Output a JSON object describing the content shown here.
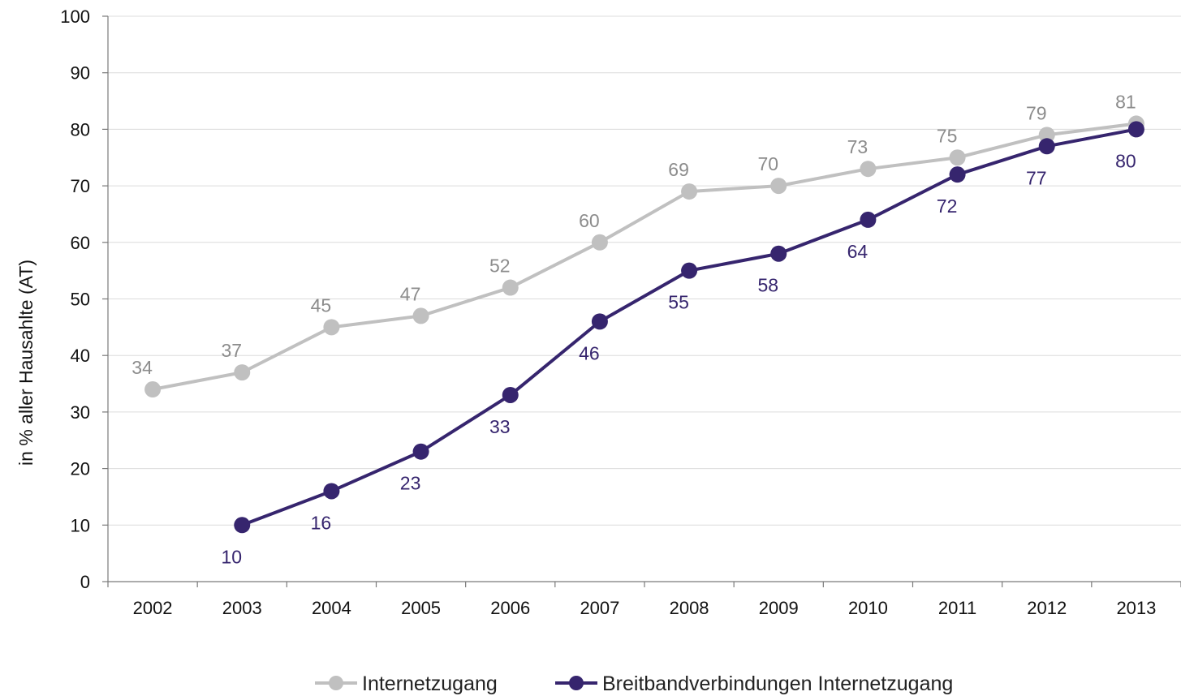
{
  "chart_data": {
    "type": "line",
    "title": "",
    "xlabel": "",
    "ylabel": "in % aller Hausahlte (AT)",
    "categories": [
      "2002",
      "2003",
      "2004",
      "2005",
      "2006",
      "2007",
      "2008",
      "2009",
      "2010",
      "2011",
      "2012",
      "2013"
    ],
    "y_ticks": [
      "0",
      "10",
      "20",
      "30",
      "40",
      "50",
      "60",
      "70",
      "80",
      "90",
      "100"
    ],
    "ylim": [
      0,
      100
    ],
    "grid": true,
    "legend_position": "bottom",
    "series": [
      {
        "name": "Internetzugang",
        "color": "#c0c0c0",
        "label_color": "#8c8c8c",
        "label_position": "above",
        "values": [
          34,
          37,
          45,
          47,
          52,
          60,
          69,
          70,
          73,
          75,
          79,
          81
        ]
      },
      {
        "name": "Breitbandverbindungen Internetzugang",
        "color": "#36256e",
        "label_color": "#36256e",
        "label_position": "below",
        "values": [
          null,
          10,
          16,
          23,
          33,
          46,
          55,
          58,
          64,
          72,
          77,
          80
        ]
      }
    ]
  }
}
